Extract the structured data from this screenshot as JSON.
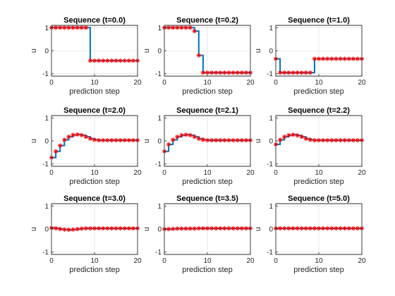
{
  "chart_data": [
    {
      "type": "line",
      "title": "Sequence (t=0.0)",
      "xlabel": "prediction step",
      "ylabel": "u",
      "xlim": [
        0,
        20
      ],
      "ylim": [
        -1.1,
        1.1
      ],
      "xticks": [
        0,
        10,
        20
      ],
      "yticks": [
        -1,
        0,
        1
      ],
      "grid": true,
      "x": [
        0,
        1,
        2,
        3,
        4,
        5,
        6,
        7,
        8,
        9,
        10,
        11,
        12,
        13,
        14,
        15,
        16,
        17,
        18,
        19,
        20
      ],
      "values": [
        1,
        1,
        1,
        1,
        1,
        1,
        1,
        1,
        1,
        -0.43,
        -0.43,
        -0.43,
        -0.43,
        -0.43,
        -0.43,
        -0.43,
        -0.43,
        -0.43,
        -0.43,
        -0.43,
        -0.43
      ]
    },
    {
      "type": "line",
      "title": "Sequence (t=0.2)",
      "xlabel": "prediction step",
      "ylabel": "u",
      "xlim": [
        0,
        20
      ],
      "ylim": [
        -1.1,
        1.1
      ],
      "xticks": [
        0,
        10,
        20
      ],
      "yticks": [
        -1,
        0,
        1
      ],
      "grid": true,
      "x": [
        0,
        1,
        2,
        3,
        4,
        5,
        6,
        7,
        8,
        9,
        10,
        11,
        12,
        13,
        14,
        15,
        16,
        17,
        18,
        19,
        20
      ],
      "values": [
        1,
        1,
        1,
        1,
        1,
        1,
        1,
        0.85,
        -0.2,
        -0.95,
        -0.95,
        -0.95,
        -0.95,
        -0.95,
        -0.95,
        -0.95,
        -0.95,
        -0.95,
        -0.95,
        -0.95,
        -0.95
      ]
    },
    {
      "type": "line",
      "title": "Sequence (t=1.0)",
      "xlabel": "prediction step",
      "ylabel": "u",
      "xlim": [
        0,
        20
      ],
      "ylim": [
        -1.1,
        1.1
      ],
      "xticks": [
        0,
        10,
        20
      ],
      "yticks": [
        -1,
        0,
        1
      ],
      "grid": true,
      "x": [
        0,
        1,
        2,
        3,
        4,
        5,
        6,
        7,
        8,
        9,
        10,
        11,
        12,
        13,
        14,
        15,
        16,
        17,
        18,
        19,
        20
      ],
      "values": [
        -0.35,
        -0.95,
        -0.95,
        -0.95,
        -0.95,
        -0.95,
        -0.95,
        -0.95,
        -0.95,
        -0.35,
        -0.35,
        -0.35,
        -0.35,
        -0.35,
        -0.35,
        -0.35,
        -0.35,
        -0.35,
        -0.35,
        -0.35,
        -0.35
      ]
    },
    {
      "type": "line",
      "title": "Sequence (t=2.0)",
      "xlabel": "prediction step",
      "ylabel": "u",
      "xlim": [
        0,
        20
      ],
      "ylim": [
        -1.1,
        1.1
      ],
      "xticks": [
        0,
        10,
        20
      ],
      "yticks": [
        -1,
        0,
        1
      ],
      "grid": true,
      "x": [
        0,
        1,
        2,
        3,
        4,
        5,
        6,
        7,
        8,
        9,
        10,
        11,
        12,
        13,
        14,
        15,
        16,
        17,
        18,
        19,
        20
      ],
      "values": [
        -0.72,
        -0.45,
        -0.2,
        0.05,
        0.18,
        0.26,
        0.28,
        0.25,
        0.18,
        0.1,
        0.05,
        0.03,
        0.03,
        0.03,
        0.03,
        0.03,
        0.03,
        0.03,
        0.03,
        0.03,
        0.03
      ]
    },
    {
      "type": "line",
      "title": "Sequence (t=2.1)",
      "xlabel": "prediction step",
      "ylabel": "u",
      "xlim": [
        0,
        20
      ],
      "ylim": [
        -1.1,
        1.1
      ],
      "xticks": [
        0,
        10,
        20
      ],
      "yticks": [
        -1,
        0,
        1
      ],
      "grid": true,
      "x": [
        0,
        1,
        2,
        3,
        4,
        5,
        6,
        7,
        8,
        9,
        10,
        11,
        12,
        13,
        14,
        15,
        16,
        17,
        18,
        19,
        20
      ],
      "values": [
        -0.45,
        -0.15,
        0.05,
        0.18,
        0.25,
        0.27,
        0.25,
        0.18,
        0.1,
        0.05,
        0.03,
        0.03,
        0.03,
        0.03,
        0.03,
        0.03,
        0.03,
        0.03,
        0.03,
        0.03,
        0.03
      ]
    },
    {
      "type": "line",
      "title": "Sequence (t=2.2)",
      "xlabel": "prediction step",
      "ylabel": "u",
      "xlim": [
        0,
        20
      ],
      "ylim": [
        -1.1,
        1.1
      ],
      "xticks": [
        0,
        10,
        20
      ],
      "yticks": [
        -1,
        0,
        1
      ],
      "grid": true,
      "x": [
        0,
        1,
        2,
        3,
        4,
        5,
        6,
        7,
        8,
        9,
        10,
        11,
        12,
        13,
        14,
        15,
        16,
        17,
        18,
        19,
        20
      ],
      "values": [
        -0.15,
        0.05,
        0.18,
        0.25,
        0.27,
        0.24,
        0.18,
        0.1,
        0.05,
        0.03,
        0.03,
        0.03,
        0.03,
        0.03,
        0.03,
        0.03,
        0.03,
        0.03,
        0.03,
        0.03,
        0.03
      ]
    },
    {
      "type": "line",
      "title": "Sequence (t=3.0)",
      "xlabel": "prediction step",
      "ylabel": "u",
      "xlim": [
        0,
        20
      ],
      "ylim": [
        -1.1,
        1.1
      ],
      "xticks": [
        0,
        10,
        20
      ],
      "yticks": [
        -1,
        0,
        1
      ],
      "grid": true,
      "x": [
        0,
        1,
        2,
        3,
        4,
        5,
        6,
        7,
        8,
        9,
        10,
        11,
        12,
        13,
        14,
        15,
        16,
        17,
        18,
        19,
        20
      ],
      "values": [
        0.05,
        0.03,
        0.0,
        -0.02,
        -0.03,
        -0.02,
        0.0,
        0.02,
        0.03,
        0.03,
        0.03,
        0.03,
        0.03,
        0.03,
        0.03,
        0.03,
        0.03,
        0.03,
        0.03,
        0.03,
        0.03
      ]
    },
    {
      "type": "line",
      "title": "Sequence (t=3.5)",
      "xlabel": "prediction step",
      "ylabel": "u",
      "xlim": [
        0,
        20
      ],
      "ylim": [
        -1.1,
        1.1
      ],
      "xticks": [
        0,
        10,
        20
      ],
      "yticks": [
        -1,
        0,
        1
      ],
      "grid": true,
      "x": [
        0,
        1,
        2,
        3,
        4,
        5,
        6,
        7,
        8,
        9,
        10,
        11,
        12,
        13,
        14,
        15,
        16,
        17,
        18,
        19,
        20
      ],
      "values": [
        0.0,
        0.0,
        0.01,
        0.02,
        0.02,
        0.02,
        0.02,
        0.02,
        0.03,
        0.03,
        0.03,
        0.03,
        0.03,
        0.03,
        0.03,
        0.03,
        0.03,
        0.03,
        0.03,
        0.03,
        0.03
      ]
    },
    {
      "type": "line",
      "title": "Sequence (t=5.0)",
      "xlabel": "prediction step",
      "ylabel": "u",
      "xlim": [
        0,
        20
      ],
      "ylim": [
        -1.1,
        1.1
      ],
      "xticks": [
        0,
        10,
        20
      ],
      "yticks": [
        -1,
        0,
        1
      ],
      "grid": true,
      "x": [
        0,
        1,
        2,
        3,
        4,
        5,
        6,
        7,
        8,
        9,
        10,
        11,
        12,
        13,
        14,
        15,
        16,
        17,
        18,
        19,
        20
      ],
      "values": [
        0.03,
        0.03,
        0.03,
        0.03,
        0.03,
        0.03,
        0.03,
        0.03,
        0.03,
        0.03,
        0.03,
        0.03,
        0.03,
        0.03,
        0.03,
        0.03,
        0.03,
        0.03,
        0.03,
        0.03,
        0.03
      ]
    }
  ],
  "style": {
    "line_color": "#0072BD",
    "marker_color": "#FF0000",
    "marker_symbol": "asterisk"
  }
}
